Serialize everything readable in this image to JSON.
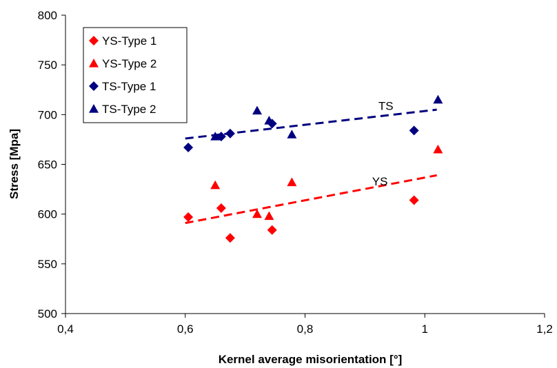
{
  "chart_data": {
    "type": "scatter",
    "xlabel": "Kernel average misorientation [°]",
    "ylabel": "Stress [Mpa]",
    "xlim": [
      0.4,
      1.2
    ],
    "ylim": [
      500,
      800
    ],
    "x_ticks": [
      "0,4",
      "0,6",
      "0,8",
      "1",
      "1,2"
    ],
    "y_ticks": [
      "500",
      "550",
      "600",
      "650",
      "700",
      "750",
      "800"
    ],
    "grid": false,
    "legend_position": "top-left",
    "series": [
      {
        "name": "YS-Type 1",
        "marker": "diamond",
        "color": "#ff0000",
        "x": [
          0.605,
          0.66,
          0.675,
          0.745,
          0.982
        ],
        "y": [
          597,
          606,
          576,
          584,
          614
        ]
      },
      {
        "name": "YS-Type 2",
        "marker": "triangle",
        "color": "#ff0000",
        "x": [
          0.65,
          0.72,
          0.74,
          0.778,
          1.022
        ],
        "y": [
          629,
          600,
          598,
          632,
          665
        ]
      },
      {
        "name": "TS-Type 1",
        "marker": "diamond",
        "color": "#000080",
        "x": [
          0.605,
          0.66,
          0.675,
          0.745,
          0.982
        ],
        "y": [
          667,
          678,
          681,
          691,
          684
        ]
      },
      {
        "name": "TS-Type 2",
        "marker": "triangle",
        "color": "#000080",
        "x": [
          0.65,
          0.72,
          0.74,
          0.778,
          1.022
        ],
        "y": [
          678,
          704,
          694,
          680,
          715
        ]
      }
    ],
    "trendlines": [
      {
        "label": "TS",
        "color": "#000080",
        "x": [
          0.6,
          1.02
        ],
        "y": [
          676,
          705
        ]
      },
      {
        "label": "YS",
        "color": "#ff0000",
        "x": [
          0.6,
          1.02
        ],
        "y": [
          591,
          639
        ]
      }
    ]
  }
}
